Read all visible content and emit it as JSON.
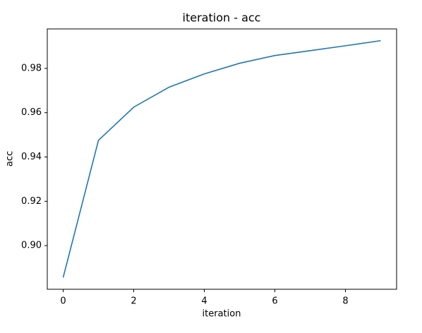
{
  "chart_data": {
    "type": "line",
    "title": "iteration - acc",
    "x_label": "iteration",
    "y_label": "acc",
    "x": [
      0,
      1,
      2,
      3,
      4,
      5,
      6,
      7,
      8,
      9
    ],
    "values": [
      0.8856,
      0.9475,
      0.9625,
      0.9715,
      0.9775,
      0.9823,
      0.9858,
      0.988,
      0.9902,
      0.9925
    ],
    "color": "#1f77b4",
    "xlim": [
      -0.45,
      9.45
    ],
    "xticks": [
      0,
      2,
      4,
      6,
      8
    ],
    "ylim": [
      0.8803,
      0.9978
    ],
    "yticks": [
      {
        "value": 0.9,
        "label": "0.90"
      },
      0.92,
      0.94,
      0.96,
      0.98
    ],
    "grid": false
  }
}
